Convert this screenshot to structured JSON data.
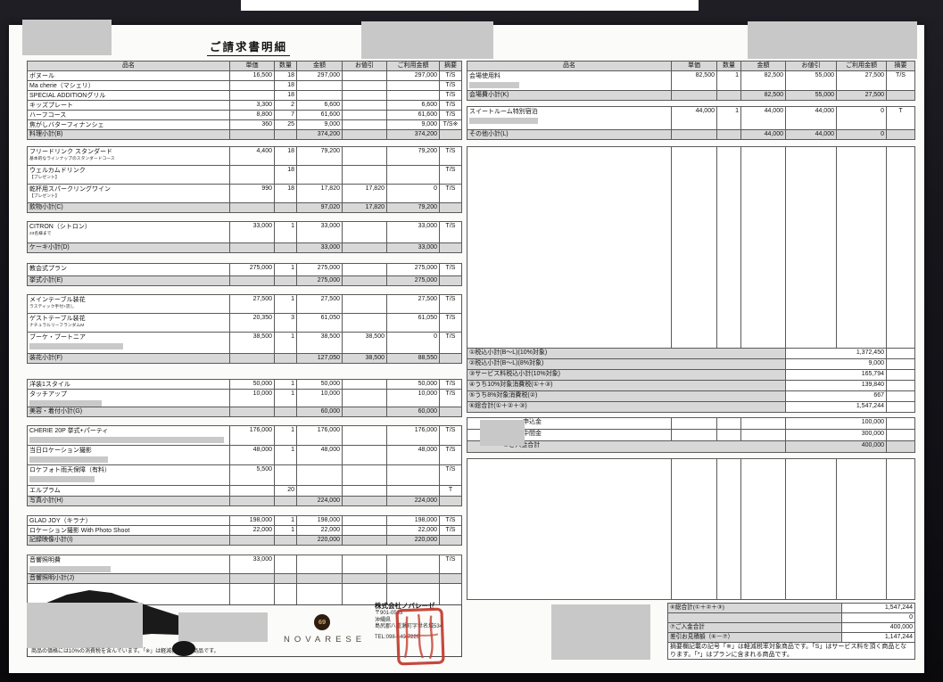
{
  "page": {
    "title": "ご請求書明細"
  },
  "table_headers": [
    "品名",
    "単価",
    "数量",
    "金額",
    "お値引",
    "ご利用金額",
    "摘要"
  ],
  "left_blocks": [
    {
      "items": [
        {
          "name": "ボヌール",
          "unit": "16,500",
          "qty": "18",
          "amount": "297,000",
          "discount": "",
          "total": "297,000",
          "note": "T/S"
        },
        {
          "name": "Ma cherie（マシェリ）",
          "unit": "",
          "qty": "18",
          "amount": "",
          "discount": "",
          "total": "",
          "note": "T/S"
        },
        {
          "name": "SPECIAL ADDITIONグリル",
          "unit": "",
          "qty": "18",
          "amount": "",
          "discount": "",
          "total": "",
          "note": "T/S"
        },
        {
          "name": "キッズプレート",
          "unit": "3,300",
          "qty": "2",
          "amount": "6,600",
          "discount": "",
          "total": "6,600",
          "note": "T/S"
        },
        {
          "name": "ハーフコース",
          "unit": "8,800",
          "qty": "7",
          "amount": "61,600",
          "discount": "",
          "total": "61,600",
          "note": "T/S"
        },
        {
          "name": "焦がしバターフィナンシェ",
          "unit": "360",
          "qty": "25",
          "amount": "9,000",
          "discount": "",
          "total": "9,000",
          "note": "T/S※"
        }
      ],
      "subtotal": {
        "label": "料理小計(B)",
        "amount": "374,200",
        "discount": "",
        "total": "374,200"
      }
    },
    {
      "items": [
        {
          "name": "フリードリンク スタンダード",
          "sub": "基本的なラインナップのスタンダードコース",
          "unit": "4,400",
          "qty": "18",
          "amount": "79,200",
          "discount": "",
          "total": "79,200",
          "note": "T/S"
        },
        {
          "name": "ウェルカムドリンク",
          "sub": "【プレゼント】",
          "unit": "",
          "qty": "18",
          "amount": "",
          "discount": "",
          "total": "",
          "note": "T/S"
        },
        {
          "name": "乾杯用スパークリングワイン",
          "sub": "【プレゼント】",
          "unit": "990",
          "qty": "18",
          "amount": "17,820",
          "discount": "17,820",
          "total": "0",
          "note": "T/S"
        }
      ],
      "subtotal": {
        "label": "飲物小計(C)",
        "amount": "97,020",
        "discount": "17,820",
        "total": "79,200"
      }
    },
    {
      "items": [
        {
          "name": "CITRON（シトロン）",
          "sub": "23名様まで",
          "unit": "33,000",
          "qty": "1",
          "amount": "33,000",
          "discount": "",
          "total": "33,000",
          "note": "T/S"
        }
      ],
      "subtotal": {
        "label": "ケーキ小計(D)",
        "amount": "33,000",
        "discount": "",
        "total": "33,000"
      }
    },
    {
      "items": [
        {
          "name": "教会式プラン",
          "unit": "275,000",
          "qty": "1",
          "amount": "275,000",
          "discount": "",
          "total": "275,000",
          "note": "T/S"
        }
      ],
      "subtotal": {
        "label": "挙式小計(E)",
        "amount": "275,000",
        "discount": "",
        "total": "275,000"
      }
    },
    {
      "items": [
        {
          "name": "メインテーブル装花",
          "sub": "ラスティック手付+流し",
          "unit": "27,500",
          "qty": "1",
          "amount": "27,500",
          "discount": "",
          "total": "27,500",
          "note": "T/S"
        },
        {
          "name": "ゲストテーブル装花",
          "sub": "ナチュラルリーフランダムM",
          "unit": "20,350",
          "qty": "3",
          "amount": "61,050",
          "discount": "",
          "total": "61,050",
          "note": "T/S"
        },
        {
          "name": "ブーケ・ブートニア",
          "redact": 105,
          "unit": "38,500",
          "qty": "1",
          "amount": "38,500",
          "discount": "38,500",
          "total": "0",
          "note": "T/S"
        }
      ],
      "subtotal": {
        "label": "装花小計(F)",
        "amount": "127,050",
        "discount": "38,500",
        "total": "88,550"
      }
    },
    {
      "items": [
        {
          "name": "洋装1スタイル",
          "unit": "50,000",
          "qty": "1",
          "amount": "50,000",
          "discount": "",
          "total": "50,000",
          "note": "T/S"
        },
        {
          "name": "タッチアップ",
          "redact": 81,
          "unit": "10,000",
          "qty": "1",
          "amount": "10,000",
          "discount": "",
          "total": "10,000",
          "note": "T/S"
        }
      ],
      "subtotal": {
        "label": "美容・着付小計(G)",
        "amount": "60,000",
        "discount": "",
        "total": "60,000"
      }
    },
    {
      "items": [
        {
          "name": "CHERIE 20P 挙式+パーティ",
          "redact": 218,
          "unit": "176,000",
          "qty": "1",
          "amount": "176,000",
          "discount": "",
          "total": "176,000",
          "note": "T/S"
        },
        {
          "name": "当日ロケーション撮影",
          "redact": 88,
          "unit": "48,000",
          "qty": "1",
          "amount": "48,000",
          "discount": "",
          "total": "48,000",
          "note": "T/S"
        },
        {
          "name": "ロケフォト雨天保障（有料）",
          "redact": 73,
          "unit": "5,500",
          "qty": "",
          "amount": "",
          "discount": "",
          "total": "",
          "note": "T/S"
        },
        {
          "name": "エルプラム",
          "unit": "",
          "qty": "20",
          "amount": "",
          "discount": "",
          "total": "",
          "note": "T"
        }
      ],
      "subtotal": {
        "label": "写真小計(H)",
        "amount": "224,000",
        "discount": "",
        "total": "224,000"
      }
    },
    {
      "items": [
        {
          "name": "GLAD JOY（キラナ）",
          "unit": "198,000",
          "qty": "1",
          "amount": "198,000",
          "discount": "",
          "total": "198,000",
          "note": "T/S"
        },
        {
          "name": "ロケーション撮影 With Photo Shoot",
          "unit": "22,000",
          "qty": "1",
          "amount": "22,000",
          "discount": "",
          "total": "22,000",
          "note": "T/S"
        }
      ],
      "subtotal": {
        "label": "記録映像小計(I)",
        "amount": "220,000",
        "discount": "",
        "total": "220,000"
      }
    },
    {
      "items": [
        {
          "name": "音響照明費",
          "redact": 91,
          "unit": "33,000",
          "qty": "",
          "amount": "",
          "discount": "",
          "total": "",
          "note": "T/S"
        }
      ],
      "subtotal": {
        "label": "音響照明小計(J)",
        "amount": "",
        "discount": "",
        "total": ""
      }
    }
  ],
  "right_blocks": [
    {
      "items": [
        {
          "name": "会場使用料",
          "redact": 56,
          "unit": "82,500",
          "qty": "1",
          "amount": "82,500",
          "discount": "55,000",
          "total": "27,500",
          "note": "T/S"
        }
      ],
      "subtotal": {
        "label": "会場費小計(K)",
        "amount": "82,500",
        "discount": "55,000",
        "total": "27,500"
      }
    },
    {
      "items": [
        {
          "name": "スイートルーム特別宿泊",
          "redact": 77,
          "unit": "44,000",
          "qty": "1",
          "amount": "44,000",
          "discount": "44,000",
          "total": "0",
          "note": "T"
        }
      ],
      "subtotal": {
        "label": "その他小計(L)",
        "amount": "44,000",
        "discount": "44,000",
        "total": "0"
      }
    }
  ],
  "tax_summary": [
    {
      "label": "①税込小計(B～L)(10%対象)",
      "value": "1,372,450"
    },
    {
      "label": "②税込小計(B～L)(8%対象)",
      "value": "9,000"
    },
    {
      "label": "③サービス料税込小計(10%対象)",
      "value": "165,794"
    },
    {
      "label": "④うち10%対象消費税(①＋③)",
      "value": "139,840"
    },
    {
      "label": "⑤うち8%対象消費税(②)",
      "value": "667"
    },
    {
      "label": "⑥総合計(①＋②＋③)",
      "value": "1,547,244"
    }
  ],
  "payments": {
    "rows": [
      {
        "label": "申込金",
        "value": "100,000"
      },
      {
        "label": "中間金",
        "value": "300,000"
      }
    ],
    "total": {
      "label": "⑦ご入金合計",
      "value": "400,000"
    }
  },
  "bottom_summary": [
    {
      "label": "⑥総合計(①＋②＋③)",
      "value": "1,547,244"
    },
    {
      "label": "",
      "value": "0"
    },
    {
      "label": "⑦ご入金合計",
      "value": "400,000"
    },
    {
      "label": "差引お見積額（⑥－⑦）",
      "value": "1,147,244"
    }
  ],
  "bottom_note": "摘要欄記載の記号「※」は軽減税率対象商品です。「S」はサービス料を頂く商品となります。「*」はプランに含まれる商品です。",
  "left_note": "商品の価格には10%の消費税を含んでいます。「※」は軽減税率対象商品です。",
  "footer": {
    "brand": "NOVARESE",
    "logo_mark": "69",
    "company_lines": [
      "株式会社ノバレーゼ",
      "〒901-0513",
      "沖縄県",
      "島尻郡八重瀬町字世名城534"
    ],
    "tel": "TEL:098-840-7220"
  },
  "colors": {
    "accent_stamp": "#c23a2c",
    "redaction": "#c8c8c8",
    "band": "#d8d8d8"
  }
}
